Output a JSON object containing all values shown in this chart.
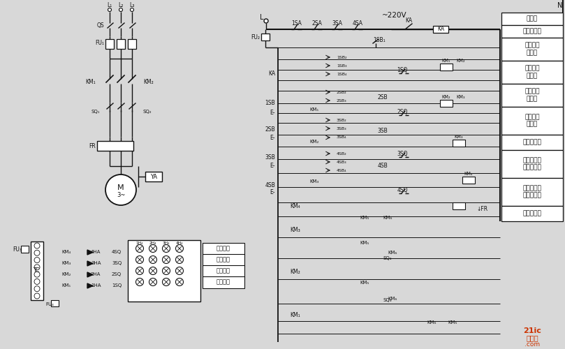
{
  "bg_color": "#d8d8d8",
  "line_color": "#111111",
  "fig_width": 8.09,
  "fig_height": 5.0,
  "dpi": 100,
  "right_labels": [
    "熔断器",
    "电压继电器",
    "一层控制\n接触器",
    "二层控制\n接触器",
    "三层控制\n接触器",
    "四层控制\n接触器",
    "上升接触器",
    "三层判别上\n下方向开关",
    "二层判别上\n下方向开关",
    "下降接触器"
  ],
  "right_box_heights": [
    18,
    18,
    33,
    33,
    33,
    40,
    22,
    40,
    40,
    22
  ],
  "voltage_label": "~220V",
  "watermark1": "21ic",
  "watermark2": "电子网",
  "bottom_sig_labels": [
    "四层信号",
    "三层信号",
    "二层信号",
    "一层信号"
  ],
  "sq_bottom_data": [
    [
      "SQ₄",
      555,
      370
    ],
    [
      "SQ₃",
      555,
      430
    ]
  ]
}
